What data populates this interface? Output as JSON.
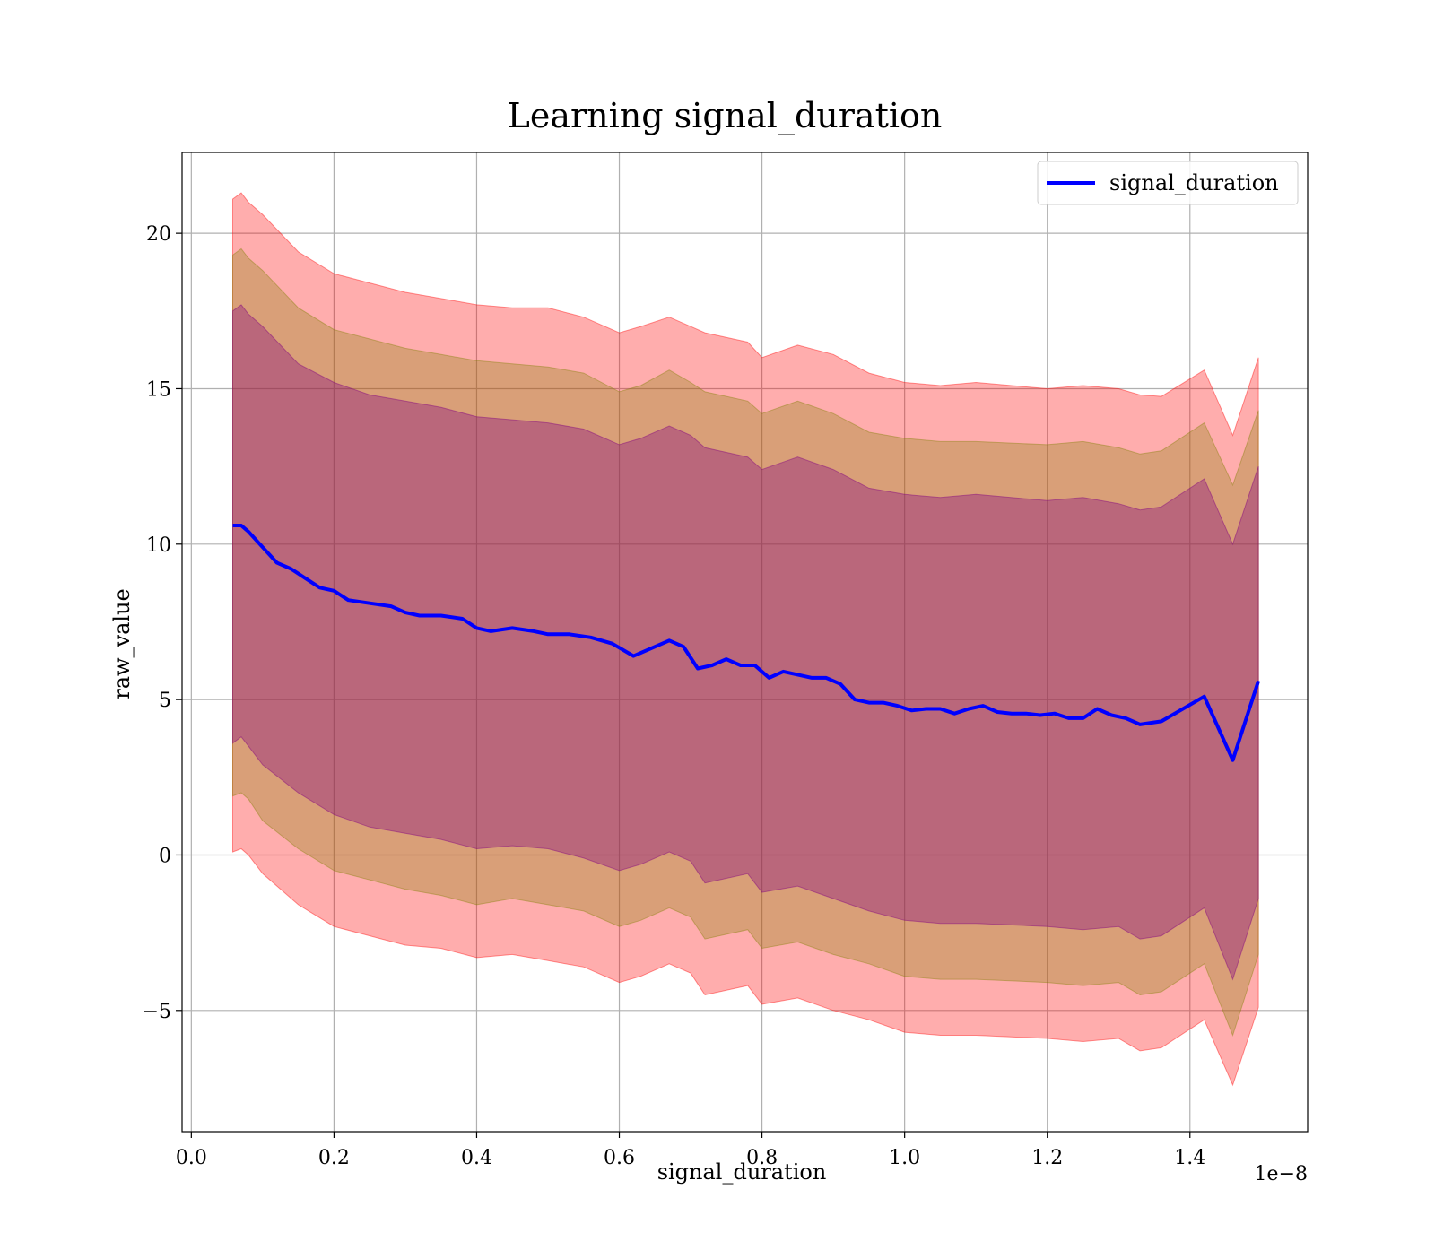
{
  "chart_data": {
    "type": "line",
    "title": "Learning signal_duration",
    "xlabel": "signal_duration",
    "ylabel": "raw_value",
    "x_offset_label": "1e−8",
    "xlim": [
      -0.013,
      1.565
    ],
    "ylim": [
      -8.9,
      22.6
    ],
    "grid": true,
    "legend_position": "top-right",
    "x_ticks": [
      {
        "value": 0.0,
        "label": "0.0"
      },
      {
        "value": 0.2,
        "label": "0.2"
      },
      {
        "value": 0.4,
        "label": "0.4"
      },
      {
        "value": 0.6,
        "label": "0.6"
      },
      {
        "value": 0.8,
        "label": "0.8"
      },
      {
        "value": 1.0,
        "label": "1.0"
      },
      {
        "value": 1.2,
        "label": "1.2"
      },
      {
        "value": 1.4,
        "label": "1.4"
      }
    ],
    "y_ticks": [
      {
        "value": -5,
        "label": "−5"
      },
      {
        "value": 0,
        "label": "0"
      },
      {
        "value": 5,
        "label": "5"
      },
      {
        "value": 10,
        "label": "10"
      },
      {
        "value": 15,
        "label": "15"
      },
      {
        "value": 20,
        "label": "20"
      }
    ],
    "series": [
      {
        "name": "signal_duration",
        "color": "#0000ff",
        "x": [
          0.058,
          0.07,
          0.08,
          0.1,
          0.12,
          0.14,
          0.16,
          0.18,
          0.2,
          0.22,
          0.25,
          0.28,
          0.3,
          0.32,
          0.35,
          0.38,
          0.4,
          0.42,
          0.45,
          0.48,
          0.5,
          0.53,
          0.56,
          0.59,
          0.62,
          0.65,
          0.67,
          0.69,
          0.71,
          0.73,
          0.75,
          0.77,
          0.79,
          0.81,
          0.83,
          0.85,
          0.87,
          0.89,
          0.91,
          0.93,
          0.95,
          0.97,
          0.99,
          1.01,
          1.03,
          1.05,
          1.07,
          1.09,
          1.11,
          1.13,
          1.15,
          1.17,
          1.19,
          1.21,
          1.23,
          1.25,
          1.27,
          1.29,
          1.31,
          1.33,
          1.36,
          1.42,
          1.46,
          1.496
        ],
        "y": [
          10.6,
          10.6,
          10.4,
          9.9,
          9.4,
          9.2,
          8.9,
          8.6,
          8.5,
          8.2,
          8.1,
          8.0,
          7.8,
          7.7,
          7.7,
          7.6,
          7.3,
          7.2,
          7.3,
          7.2,
          7.1,
          7.1,
          7.0,
          6.8,
          6.4,
          6.7,
          6.9,
          6.7,
          6.0,
          6.1,
          6.3,
          6.1,
          6.1,
          5.7,
          5.9,
          5.8,
          5.7,
          5.7,
          5.5,
          5.0,
          4.9,
          4.9,
          4.8,
          4.65,
          4.7,
          4.7,
          4.55,
          4.7,
          4.8,
          4.6,
          4.55,
          4.55,
          4.5,
          4.55,
          4.4,
          4.4,
          4.7,
          4.5,
          4.4,
          4.2,
          4.3,
          5.1,
          3.05,
          5.6
        ]
      }
    ],
    "bands": [
      {
        "color": "#ff0000",
        "opacity": 0.32,
        "x": [
          0.058,
          0.07,
          0.08,
          0.1,
          0.15,
          0.2,
          0.25,
          0.3,
          0.35,
          0.4,
          0.45,
          0.5,
          0.55,
          0.6,
          0.63,
          0.67,
          0.7,
          0.72,
          0.78,
          0.8,
          0.85,
          0.9,
          0.95,
          1.0,
          1.05,
          1.1,
          1.2,
          1.25,
          1.3,
          1.33,
          1.36,
          1.42,
          1.46,
          1.496
        ],
        "upper": [
          21.1,
          21.3,
          21.0,
          20.6,
          19.4,
          18.7,
          18.4,
          18.1,
          17.9,
          17.7,
          17.6,
          17.6,
          17.3,
          16.8,
          17.0,
          17.3,
          17.0,
          16.8,
          16.5,
          16.0,
          16.4,
          16.1,
          15.5,
          15.2,
          15.1,
          15.2,
          15.0,
          15.1,
          15.0,
          14.8,
          14.75,
          15.6,
          13.5,
          16.0
        ],
        "lower": [
          0.1,
          0.2,
          0.0,
          -0.6,
          -1.6,
          -2.3,
          -2.6,
          -2.9,
          -3.0,
          -3.3,
          -3.2,
          -3.4,
          -3.6,
          -4.1,
          -3.9,
          -3.5,
          -3.8,
          -4.5,
          -4.2,
          -4.8,
          -4.6,
          -5.0,
          -5.3,
          -5.7,
          -5.8,
          -5.8,
          -5.9,
          -6.0,
          -5.9,
          -6.3,
          -6.2,
          -5.3,
          -7.4,
          -4.9
        ]
      },
      {
        "color": "#808000",
        "opacity": 0.3,
        "x": [
          0.058,
          0.07,
          0.08,
          0.1,
          0.15,
          0.2,
          0.25,
          0.3,
          0.35,
          0.4,
          0.45,
          0.5,
          0.55,
          0.6,
          0.63,
          0.67,
          0.7,
          0.72,
          0.78,
          0.8,
          0.85,
          0.9,
          0.95,
          1.0,
          1.05,
          1.1,
          1.2,
          1.25,
          1.3,
          1.33,
          1.36,
          1.42,
          1.46,
          1.496
        ],
        "upper": [
          19.3,
          19.5,
          19.2,
          18.8,
          17.6,
          16.9,
          16.6,
          16.3,
          16.1,
          15.9,
          15.8,
          15.7,
          15.5,
          14.9,
          15.1,
          15.6,
          15.2,
          14.9,
          14.6,
          14.2,
          14.6,
          14.2,
          13.6,
          13.4,
          13.3,
          13.3,
          13.2,
          13.3,
          13.1,
          12.9,
          13.0,
          13.9,
          11.9,
          14.3
        ],
        "lower": [
          1.9,
          2.0,
          1.8,
          1.1,
          0.2,
          -0.5,
          -0.8,
          -1.1,
          -1.3,
          -1.6,
          -1.4,
          -1.6,
          -1.8,
          -2.3,
          -2.1,
          -1.7,
          -2.0,
          -2.7,
          -2.4,
          -3.0,
          -2.8,
          -3.2,
          -3.5,
          -3.9,
          -4.0,
          -4.0,
          -4.1,
          -4.2,
          -4.1,
          -4.5,
          -4.4,
          -3.5,
          -5.8,
          -3.2
        ]
      },
      {
        "color": "#800080",
        "opacity": 0.35,
        "x": [
          0.058,
          0.07,
          0.08,
          0.1,
          0.15,
          0.2,
          0.25,
          0.3,
          0.35,
          0.4,
          0.45,
          0.5,
          0.55,
          0.6,
          0.63,
          0.67,
          0.7,
          0.72,
          0.78,
          0.8,
          0.85,
          0.9,
          0.95,
          1.0,
          1.05,
          1.1,
          1.2,
          1.25,
          1.3,
          1.33,
          1.36,
          1.42,
          1.46,
          1.496
        ],
        "upper": [
          17.5,
          17.7,
          17.4,
          17.0,
          15.8,
          15.2,
          14.8,
          14.6,
          14.4,
          14.1,
          14.0,
          13.9,
          13.7,
          13.2,
          13.4,
          13.8,
          13.5,
          13.1,
          12.8,
          12.4,
          12.8,
          12.4,
          11.8,
          11.6,
          11.5,
          11.6,
          11.4,
          11.5,
          11.3,
          11.1,
          11.2,
          12.1,
          10.0,
          12.5
        ],
        "lower": [
          3.6,
          3.8,
          3.5,
          2.9,
          2.0,
          1.3,
          0.9,
          0.7,
          0.5,
          0.2,
          0.3,
          0.2,
          -0.1,
          -0.5,
          -0.3,
          0.1,
          -0.2,
          -0.9,
          -0.6,
          -1.2,
          -1.0,
          -1.4,
          -1.8,
          -2.1,
          -2.2,
          -2.2,
          -2.3,
          -2.4,
          -2.3,
          -2.7,
          -2.6,
          -1.7,
          -4.0,
          -1.4
        ]
      }
    ]
  }
}
